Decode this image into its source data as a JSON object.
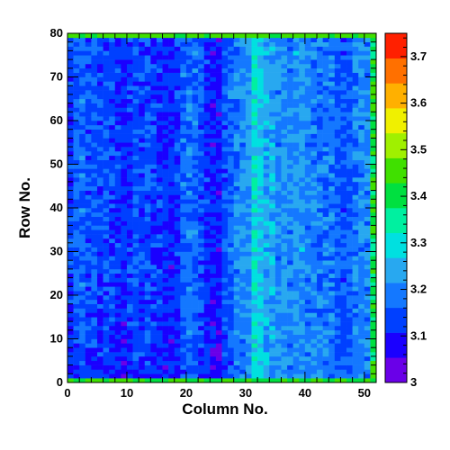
{
  "chart_data": {
    "type": "heatmap",
    "title": "",
    "xlabel": "Column No.",
    "ylabel": "Row No.",
    "xlim": [
      0,
      52
    ],
    "ylim": [
      0,
      80
    ],
    "x_bins": 52,
    "y_bins": 80,
    "x_ticks": [
      0,
      10,
      20,
      30,
      40,
      50
    ],
    "y_ticks": [
      0,
      10,
      20,
      30,
      40,
      50,
      60,
      70,
      80
    ],
    "zlim": [
      3.0,
      3.75
    ],
    "z_ticks": [
      "3",
      "3.1",
      "3.2",
      "3.3",
      "3.4",
      "3.5",
      "3.6",
      "3.7"
    ],
    "colorscale": [
      "#6a00e8",
      "#1a00ff",
      "#0040ff",
      "#1478ff",
      "#28a8f0",
      "#00e0e0",
      "#00f0a0",
      "#00e040",
      "#40e000",
      "#a0f000",
      "#f0f000",
      "#ffb000",
      "#ff7000",
      "#ff2000"
    ],
    "column_profile": [
      3.13,
      3.16,
      3.17,
      3.15,
      3.16,
      3.14,
      3.15,
      3.14,
      3.12,
      3.11,
      3.13,
      3.15,
      3.14,
      3.15,
      3.13,
      3.12,
      3.11,
      3.1,
      3.12,
      3.17,
      3.18,
      3.17,
      3.15,
      3.12,
      3.1,
      3.09,
      3.15,
      3.17,
      3.2,
      3.21,
      3.22,
      3.3,
      3.27,
      3.24,
      3.23,
      3.21,
      3.22,
      3.2,
      3.22,
      3.22,
      3.2,
      3.19,
      3.18,
      3.18,
      3.19,
      3.16,
      3.15,
      3.16,
      3.19,
      3.2,
      3.2,
      3.4
    ],
    "top_row_value": 3.45,
    "bottom_row_value": 3.42,
    "noise_amplitude": 0.05,
    "low_rows_offset": -0.03
  }
}
